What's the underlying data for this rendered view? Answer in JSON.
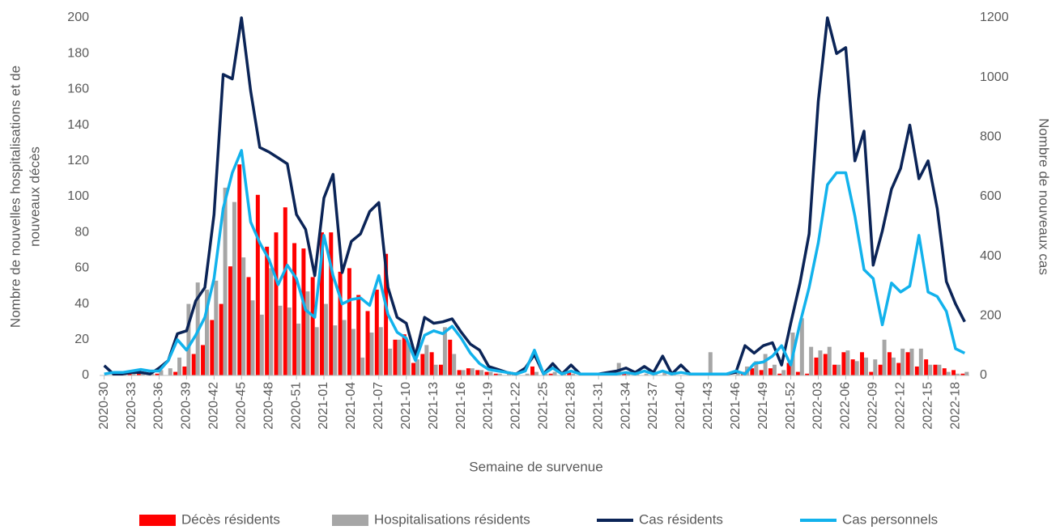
{
  "chart_data": {
    "type": "bar-line",
    "x_label": "Semaine de survenue",
    "y_label": [
      "Nombre de nouvelles hospitalisations et de",
      "nouveaux décès"
    ],
    "y2_label": "Nombre de nouveaux cas",
    "ylim": [
      0,
      200
    ],
    "yticks": [
      0,
      20,
      40,
      60,
      80,
      100,
      120,
      140,
      160,
      180,
      200
    ],
    "y2lim": [
      0,
      1200
    ],
    "y2ticks": [
      0,
      200,
      400,
      600,
      800,
      1000,
      1200
    ],
    "legend": "bottom",
    "categories": [
      "2020-30",
      null,
      null,
      "2020-33",
      null,
      null,
      "2020-36",
      null,
      null,
      "2020-39",
      null,
      null,
      "2020-42",
      null,
      null,
      "2020-45",
      null,
      null,
      "2020-48",
      null,
      null,
      "2020-51",
      null,
      null,
      "2021-01",
      null,
      null,
      "2021-04",
      null,
      null,
      "2021-07",
      null,
      null,
      "2021-10",
      null,
      null,
      "2021-13",
      null,
      null,
      "2021-16",
      null,
      null,
      "2021-19",
      null,
      null,
      "2021-22",
      null,
      null,
      "2021-25",
      null,
      null,
      "2021-28",
      null,
      null,
      "2021-31",
      null,
      null,
      "2021-34",
      null,
      null,
      "2021-37",
      null,
      null,
      "2021-40",
      null,
      null,
      "2021-43",
      null,
      null,
      "2021-46",
      null,
      null,
      "2021-49",
      null,
      null,
      "2021-52",
      null,
      null,
      "2022-03",
      null,
      null,
      "2022-06",
      null,
      null,
      "2022-09",
      null,
      null,
      "2022-12",
      null,
      null,
      "2022-15",
      null,
      null,
      "2022-18",
      null
    ],
    "series": [
      {
        "name": "Décès résidents",
        "kind": "bar",
        "color": "#ff0000",
        "values": [
          0,
          0,
          1,
          1,
          1,
          0,
          1,
          0,
          2,
          5,
          12,
          17,
          31,
          40,
          61,
          118,
          55,
          101,
          72,
          80,
          94,
          74,
          71,
          55,
          80,
          80,
          58,
          60,
          45,
          36,
          48,
          68,
          20,
          23,
          7,
          12,
          13,
          6,
          20,
          3,
          4,
          3,
          2,
          1,
          0,
          1,
          0,
          5,
          0,
          1,
          0,
          2,
          0,
          0,
          0,
          0,
          0,
          1,
          0,
          0,
          0,
          0,
          0,
          0,
          0,
          0,
          0,
          0,
          0,
          0,
          2,
          4,
          3,
          4,
          1,
          7,
          2,
          1,
          10,
          12,
          6,
          13,
          9,
          13,
          2,
          6,
          13,
          7,
          13,
          5,
          9,
          6,
          4,
          3,
          1
        ]
      },
      {
        "name": "Hospitalisations résidents",
        "kind": "bar",
        "color": "#a6a6a6",
        "values": [
          0,
          1,
          2,
          2,
          1,
          1,
          3,
          4,
          10,
          40,
          52,
          48,
          53,
          105,
          97,
          66,
          42,
          34,
          60,
          39,
          38,
          29,
          47,
          27,
          40,
          28,
          31,
          26,
          10,
          24,
          27,
          15,
          20,
          18,
          9,
          17,
          6,
          27,
          12,
          3,
          4,
          3,
          2,
          1,
          1,
          0,
          1,
          2,
          1,
          2,
          1,
          1,
          0,
          1,
          0,
          1,
          7,
          2,
          1,
          1,
          1,
          2,
          1,
          0,
          1,
          0,
          13,
          1,
          0,
          2,
          5,
          8,
          12,
          6,
          3,
          24,
          32,
          16,
          14,
          16,
          6,
          14,
          8,
          10,
          9,
          20,
          10,
          15,
          15,
          15,
          6,
          6,
          2,
          1,
          2
        ]
      },
      {
        "name": "Cas résidents",
        "kind": "line",
        "axis": "y2",
        "color": "#0b2457",
        "values": [
          33,
          5,
          5,
          10,
          10,
          5,
          25,
          50,
          140,
          150,
          250,
          295,
          540,
          1010,
          995,
          1200,
          955,
          765,
          750,
          730,
          710,
          540,
          490,
          335,
          595,
          675,
          345,
          450,
          475,
          550,
          580,
          295,
          195,
          175,
          65,
          195,
          175,
          180,
          190,
          145,
          105,
          85,
          30,
          20,
          10,
          5,
          25,
          70,
          5,
          40,
          5,
          35,
          5,
          5,
          5,
          10,
          15,
          25,
          10,
          30,
          10,
          65,
          5,
          35,
          5,
          5,
          5,
          5,
          5,
          10,
          100,
          75,
          100,
          110,
          35,
          175,
          310,
          475,
          920,
          1200,
          1080,
          1100,
          720,
          820,
          370,
          485,
          625,
          695,
          840,
          660,
          720,
          560,
          315,
          240,
          180
        ]
      },
      {
        "name": "Cas personnels",
        "kind": "line",
        "axis": "y2",
        "color": "#12b2ec",
        "values": [
          5,
          10,
          10,
          15,
          20,
          15,
          15,
          50,
          120,
          85,
          135,
          195,
          325,
          560,
          680,
          755,
          515,
          445,
          390,
          305,
          370,
          325,
          220,
          195,
          470,
          335,
          240,
          255,
          260,
          235,
          335,
          205,
          145,
          125,
          50,
          135,
          150,
          140,
          165,
          125,
          75,
          40,
          20,
          15,
          10,
          5,
          15,
          85,
          5,
          25,
          5,
          15,
          5,
          5,
          5,
          5,
          5,
          10,
          5,
          15,
          5,
          15,
          5,
          10,
          5,
          5,
          5,
          5,
          5,
          15,
          5,
          40,
          45,
          65,
          100,
          35,
          175,
          295,
          445,
          640,
          680,
          680,
          535,
          355,
          325,
          170,
          310,
          280,
          300,
          470,
          280,
          265,
          215,
          90,
          75
        ]
      }
    ]
  }
}
